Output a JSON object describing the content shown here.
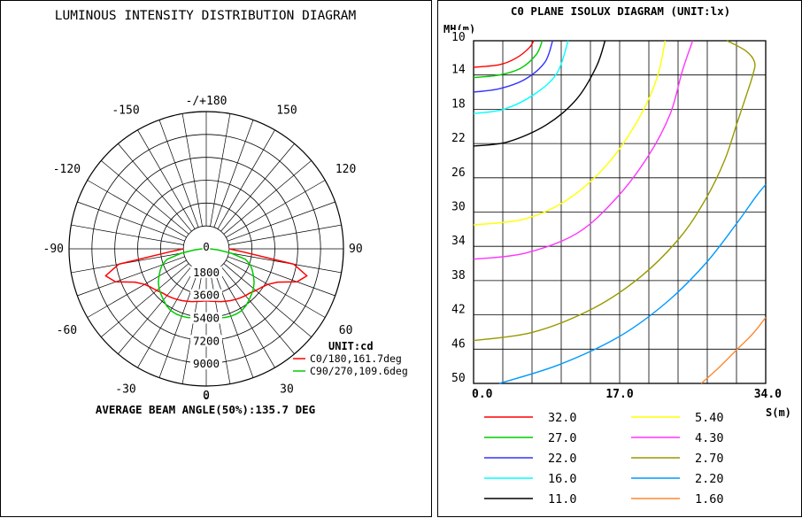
{
  "polar": {
    "title": "LUMINOUS INTENSITY DISTRIBUTION DIAGRAM",
    "angle_labels": [
      {
        "angle": 180,
        "text": "-/+180"
      },
      {
        "angle": -150,
        "text": "-150"
      },
      {
        "angle": 150,
        "text": "150"
      },
      {
        "angle": -120,
        "text": "-120"
      },
      {
        "angle": 120,
        "text": "120"
      },
      {
        "angle": -90,
        "text": "-90"
      },
      {
        "angle": 90,
        "text": "90"
      },
      {
        "angle": -60,
        "text": "-60"
      },
      {
        "angle": 60,
        "text": "60"
      },
      {
        "angle": -30,
        "text": "-30"
      },
      {
        "angle": 30,
        "text": "30"
      },
      {
        "angle": 0,
        "text": "0"
      }
    ],
    "radial_labels": [
      "0",
      "1800",
      "3600",
      "5400",
      "7200",
      "9000"
    ],
    "unit_label": "UNIT:cd",
    "legend": [
      {
        "label": "C0/180,161.7deg",
        "color": "#ff0000"
      },
      {
        "label": "C90/270,109.6deg",
        "color": "#00cc00"
      }
    ],
    "beam_angle_text": "AVERAGE BEAM ANGLE(50%):135.7 DEG"
  },
  "chart_data": [
    {
      "type": "line",
      "title": "LUMINOUS INTENSITY DISTRIBUTION DIAGRAM",
      "coordinate_system": "polar",
      "unit": "cd",
      "radial_range": [
        0,
        10800
      ],
      "radial_ticks": [
        0,
        1800,
        3600,
        5400,
        7200,
        9000
      ],
      "series": [
        {
          "name": "C0/180,161.7deg",
          "color": "#ff0000",
          "angles": [
            -90,
            -85,
            -80,
            -75,
            -70,
            -65,
            -60,
            -55,
            -50,
            -45,
            -40,
            -35,
            -30,
            -25,
            -20,
            -15,
            -10,
            -5,
            0,
            5,
            10,
            15,
            20,
            25,
            30,
            35,
            40,
            45,
            50,
            55,
            60,
            65,
            70,
            75,
            80,
            85,
            90
          ],
          "values": [
            1800,
            3000,
            7000,
            8200,
            7600,
            6200,
            5600,
            5300,
            5100,
            4900,
            4800,
            4700,
            4600,
            4500,
            4400,
            4300,
            4200,
            4150,
            4100,
            4150,
            4200,
            4300,
            4400,
            4500,
            4600,
            4700,
            4800,
            4900,
            5100,
            5300,
            5600,
            6200,
            7600,
            8200,
            7000,
            3000,
            1800
          ]
        },
        {
          "name": "C90/270,109.6deg",
          "color": "#00cc00",
          "angles": [
            -90,
            -85,
            -80,
            -75,
            -70,
            -65,
            -60,
            -55,
            -50,
            -45,
            -40,
            -35,
            -30,
            -25,
            -20,
            -15,
            -10,
            -5,
            0,
            5,
            10,
            15,
            20,
            25,
            30,
            35,
            40,
            45,
            50,
            55,
            60,
            65,
            70,
            75,
            80,
            85,
            90
          ],
          "values": [
            300,
            900,
            2000,
            3200,
            3700,
            4000,
            4300,
            4600,
            4850,
            5050,
            5250,
            5450,
            5600,
            5650,
            5650,
            5600,
            5500,
            5450,
            5400,
            5450,
            5500,
            5600,
            5650,
            5650,
            5600,
            5450,
            5250,
            5050,
            4850,
            4600,
            4300,
            4000,
            3700,
            3200,
            2000,
            900,
            300
          ]
        }
      ]
    },
    {
      "type": "line",
      "title": "C0 PLANE ISOLUX DIAGRAM (UNIT:lx)",
      "xlabel": "S(m)",
      "ylabel": "MH(m)",
      "xlim": [
        0,
        34
      ],
      "ylim": [
        10,
        50
      ],
      "x_tick_labels": [
        "0.0",
        "17.0",
        "34.0"
      ],
      "y_tick_labels": [
        "10",
        "14",
        "18",
        "22",
        "26",
        "30",
        "34",
        "38",
        "42",
        "46",
        "50"
      ],
      "y_inverted": true,
      "series": [
        {
          "name": "32.0",
          "color": "#ff0000",
          "x": [
            0,
            3,
            5,
            6.5,
            7
          ],
          "y": [
            13.1,
            12.8,
            12.0,
            10.8,
            10
          ]
        },
        {
          "name": "27.0",
          "color": "#00cc00",
          "x": [
            0,
            3,
            5.5,
            7.3,
            8
          ],
          "y": [
            14.3,
            14.0,
            13.2,
            11.6,
            10
          ]
        },
        {
          "name": "22.0",
          "color": "#3333ff",
          "x": [
            0,
            3,
            6,
            8.3,
            9.2
          ],
          "y": [
            16.0,
            15.6,
            14.5,
            12.5,
            10
          ]
        },
        {
          "name": "16.0",
          "color": "#00ffff",
          "x": [
            0,
            3.5,
            7,
            9.7,
            11
          ],
          "y": [
            18.5,
            18.0,
            16.3,
            13.8,
            10
          ]
        },
        {
          "name": "11.0",
          "color": "#000000",
          "x": [
            0,
            4,
            8.5,
            12,
            14.3,
            15.3
          ],
          "y": [
            22.3,
            21.8,
            19.8,
            16.8,
            13,
            10
          ]
        },
        {
          "name": "5.40",
          "color": "#ffff00",
          "x": [
            0,
            6,
            11,
            15.5,
            19,
            21.3,
            22.3
          ],
          "y": [
            31.5,
            30.8,
            28.5,
            24.5,
            19.5,
            14.5,
            10
          ]
        },
        {
          "name": "4.30",
          "color": "#ff33ff",
          "x": [
            0,
            6,
            12,
            16.5,
            20.3,
            22.9,
            24.3,
            25.5
          ],
          "y": [
            35.5,
            34.8,
            32.5,
            28.5,
            23.5,
            18.5,
            13.5,
            10
          ]
        },
        {
          "name": "2.70",
          "color": "#999900",
          "x": [
            0,
            7,
            14,
            19.5,
            24,
            27,
            29.2,
            30.7,
            31.7,
            32.5,
            32.7,
            31.7,
            29.5
          ],
          "y": [
            45.0,
            44.0,
            41.2,
            37.5,
            33,
            28.5,
            24,
            19.5,
            16.5,
            14,
            12.5,
            11.2,
            10
          ]
        },
        {
          "name": "2.20",
          "color": "#0099ff",
          "x": [
            3,
            10,
            17,
            22.5,
            27,
            30.5,
            33,
            34
          ],
          "y": [
            50,
            47.8,
            44.5,
            40.5,
            36,
            31.5,
            28,
            26.8
          ]
        },
        {
          "name": "1.60",
          "color": "#ff8833",
          "x": [
            26.5,
            28.5,
            30.5,
            32.5,
            34
          ],
          "y": [
            50,
            48.2,
            46.2,
            44.2,
            42.3
          ]
        }
      ]
    }
  ],
  "isolux": {
    "title": "C0 PLANE ISOLUX DIAGRAM (UNIT:lx)",
    "ylabel": "MH(m)",
    "xlabel": "S(m)"
  }
}
